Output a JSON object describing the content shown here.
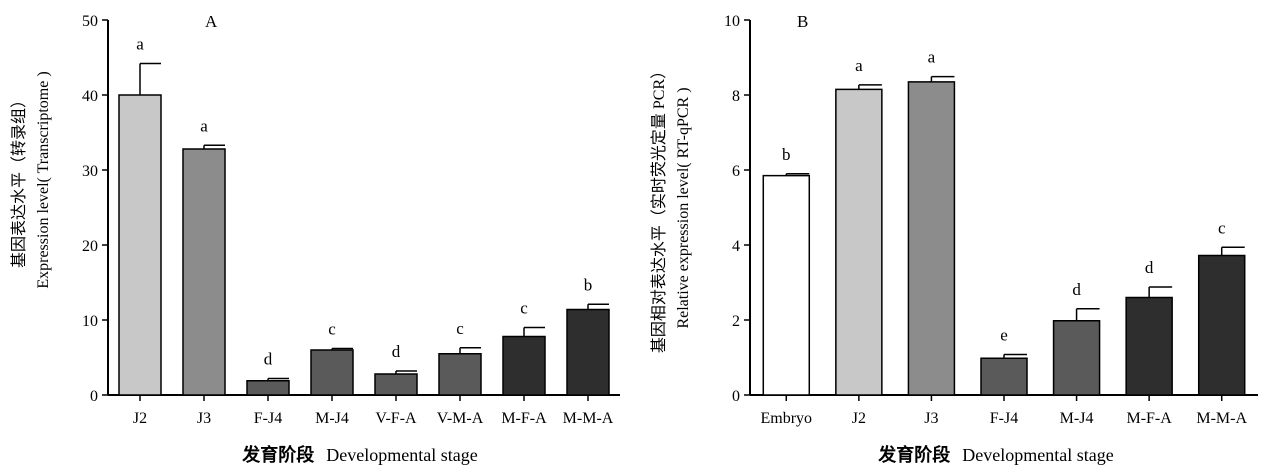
{
  "chart_data": [
    {
      "type": "bar",
      "panel_label": "A",
      "categories": [
        "J2",
        "J3",
        "F-J4",
        "M-J4",
        "V-F-A",
        "V-M-A",
        "M-F-A",
        "M-M-A"
      ],
      "values": [
        40.0,
        32.8,
        1.9,
        6.0,
        2.8,
        5.5,
        7.8,
        11.4
      ],
      "errors": [
        4.2,
        0.5,
        0.3,
        0.2,
        0.4,
        0.8,
        1.2,
        0.7
      ],
      "significance": [
        "a",
        "a",
        "d",
        "c",
        "d",
        "c",
        "c",
        "b"
      ],
      "bar_colors": [
        "#c8c8c8",
        "#8c8c8c",
        "#5a5a5a",
        "#5a5a5a",
        "#5a5a5a",
        "#5a5a5a",
        "#2e2e2e",
        "#2e2e2e"
      ],
      "ylabel_cn": "基因表达水平（转录组）",
      "ylabel_en": "Expression level( Transcriptome )",
      "xlabel_cn": "发育阶段",
      "xlabel_en": "Developmental stage",
      "ylim": [
        0,
        50
      ],
      "yticks": [
        0,
        10,
        20,
        30,
        40,
        50
      ]
    },
    {
      "type": "bar",
      "panel_label": "B",
      "categories": [
        "Embryo",
        "J2",
        "J3",
        "F-J4",
        "M-J4",
        "M-F-A",
        "M-M-A"
      ],
      "values": [
        5.85,
        8.15,
        8.35,
        0.98,
        1.98,
        2.6,
        3.72
      ],
      "errors": [
        0.05,
        0.12,
        0.14,
        0.1,
        0.32,
        0.28,
        0.22
      ],
      "significance": [
        "b",
        "a",
        "a",
        "e",
        "d",
        "d",
        "c"
      ],
      "bar_colors": [
        "#ffffff",
        "#c8c8c8",
        "#8c8c8c",
        "#5a5a5a",
        "#5a5a5a",
        "#2e2e2e",
        "#2e2e2e"
      ],
      "ylabel_cn": "基因相对表达水平（实时荧光定量 PCR）",
      "ylabel_en": "Relative expression level( RT-qPCR )",
      "xlabel_cn": "发育阶段",
      "xlabel_en": "Developmental stage",
      "ylim": [
        0,
        10
      ],
      "yticks": [
        0,
        2,
        4,
        6,
        8,
        10
      ]
    }
  ]
}
